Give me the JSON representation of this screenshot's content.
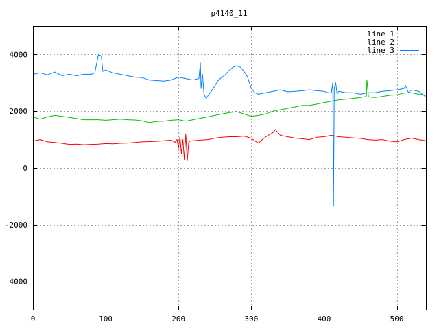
{
  "chart_data": {
    "type": "line",
    "title": "p4140_11",
    "xlabel": "",
    "ylabel": "",
    "xlim": [
      0,
      540
    ],
    "ylim": [
      -5000,
      5000
    ],
    "xticks": [
      0,
      100,
      200,
      300,
      400,
      500
    ],
    "yticks": [
      -4000,
      -2000,
      0,
      2000,
      4000
    ],
    "grid": true,
    "legend_position": "top-right",
    "series": [
      {
        "name": "line 1",
        "color": "#ff0000",
        "points": [
          [
            0,
            950
          ],
          [
            10,
            1000
          ],
          [
            20,
            920
          ],
          [
            30,
            900
          ],
          [
            40,
            870
          ],
          [
            50,
            830
          ],
          [
            60,
            840
          ],
          [
            70,
            820
          ],
          [
            80,
            830
          ],
          [
            90,
            840
          ],
          [
            100,
            860
          ],
          [
            110,
            850
          ],
          [
            120,
            870
          ],
          [
            130,
            880
          ],
          [
            140,
            900
          ],
          [
            150,
            920
          ],
          [
            160,
            930
          ],
          [
            170,
            940
          ],
          [
            180,
            960
          ],
          [
            190,
            980
          ],
          [
            195,
            900
          ],
          [
            198,
            1000
          ],
          [
            200,
            700
          ],
          [
            202,
            1100
          ],
          [
            204,
            500
          ],
          [
            206,
            1000
          ],
          [
            208,
            300
          ],
          [
            210,
            1200
          ],
          [
            212,
            250
          ],
          [
            214,
            900
          ],
          [
            216,
            950
          ],
          [
            220,
            960
          ],
          [
            230,
            980
          ],
          [
            240,
            1000
          ],
          [
            250,
            1050
          ],
          [
            260,
            1080
          ],
          [
            270,
            1100
          ],
          [
            280,
            1100
          ],
          [
            290,
            1120
          ],
          [
            300,
            1050
          ],
          [
            305,
            950
          ],
          [
            310,
            880
          ],
          [
            315,
            1000
          ],
          [
            320,
            1100
          ],
          [
            330,
            1250
          ],
          [
            333,
            1350
          ],
          [
            340,
            1150
          ],
          [
            350,
            1100
          ],
          [
            360,
            1050
          ],
          [
            370,
            1030
          ],
          [
            380,
            1000
          ],
          [
            390,
            1080
          ],
          [
            400,
            1100
          ],
          [
            410,
            1150
          ],
          [
            420,
            1100
          ],
          [
            430,
            1080
          ],
          [
            440,
            1060
          ],
          [
            450,
            1040
          ],
          [
            460,
            1000
          ],
          [
            470,
            980
          ],
          [
            480,
            1000
          ],
          [
            490,
            950
          ],
          [
            500,
            920
          ],
          [
            510,
            1000
          ],
          [
            520,
            1050
          ],
          [
            530,
            1000
          ],
          [
            540,
            960
          ]
        ]
      },
      {
        "name": "line 2",
        "color": "#00c000",
        "points": [
          [
            0,
            1800
          ],
          [
            10,
            1720
          ],
          [
            20,
            1800
          ],
          [
            30,
            1850
          ],
          [
            40,
            1820
          ],
          [
            50,
            1780
          ],
          [
            60,
            1740
          ],
          [
            70,
            1700
          ],
          [
            80,
            1700
          ],
          [
            90,
            1700
          ],
          [
            100,
            1680
          ],
          [
            110,
            1700
          ],
          [
            120,
            1720
          ],
          [
            130,
            1700
          ],
          [
            140,
            1690
          ],
          [
            150,
            1660
          ],
          [
            160,
            1600
          ],
          [
            170,
            1640
          ],
          [
            180,
            1650
          ],
          [
            190,
            1680
          ],
          [
            200,
            1700
          ],
          [
            210,
            1650
          ],
          [
            220,
            1700
          ],
          [
            230,
            1750
          ],
          [
            240,
            1800
          ],
          [
            250,
            1850
          ],
          [
            260,
            1900
          ],
          [
            270,
            1950
          ],
          [
            280,
            1980
          ],
          [
            290,
            1900
          ],
          [
            300,
            1820
          ],
          [
            310,
            1850
          ],
          [
            320,
            1900
          ],
          [
            330,
            2000
          ],
          [
            340,
            2050
          ],
          [
            350,
            2100
          ],
          [
            360,
            2150
          ],
          [
            370,
            2200
          ],
          [
            380,
            2200
          ],
          [
            390,
            2250
          ],
          [
            400,
            2300
          ],
          [
            410,
            2350
          ],
          [
            420,
            2400
          ],
          [
            430,
            2420
          ],
          [
            440,
            2450
          ],
          [
            450,
            2480
          ],
          [
            458,
            2520
          ],
          [
            459,
            3100
          ],
          [
            461,
            2500
          ],
          [
            470,
            2480
          ],
          [
            480,
            2520
          ],
          [
            490,
            2560
          ],
          [
            500,
            2580
          ],
          [
            510,
            2640
          ],
          [
            520,
            2650
          ],
          [
            530,
            2600
          ],
          [
            540,
            2560
          ]
        ]
      },
      {
        "name": "line 3",
        "color": "#0080ff",
        "points": [
          [
            0,
            3300
          ],
          [
            10,
            3350
          ],
          [
            20,
            3280
          ],
          [
            30,
            3380
          ],
          [
            40,
            3250
          ],
          [
            50,
            3300
          ],
          [
            60,
            3250
          ],
          [
            70,
            3300
          ],
          [
            80,
            3300
          ],
          [
            85,
            3350
          ],
          [
            90,
            4000
          ],
          [
            94,
            3950
          ],
          [
            96,
            3400
          ],
          [
            100,
            3450
          ],
          [
            110,
            3350
          ],
          [
            120,
            3300
          ],
          [
            130,
            3250
          ],
          [
            140,
            3200
          ],
          [
            150,
            3180
          ],
          [
            160,
            3100
          ],
          [
            170,
            3080
          ],
          [
            180,
            3060
          ],
          [
            190,
            3100
          ],
          [
            200,
            3200
          ],
          [
            210,
            3150
          ],
          [
            220,
            3100
          ],
          [
            228,
            3150
          ],
          [
            230,
            3700
          ],
          [
            231,
            2800
          ],
          [
            233,
            3300
          ],
          [
            235,
            2600
          ],
          [
            238,
            2450
          ],
          [
            242,
            2600
          ],
          [
            245,
            2700
          ],
          [
            250,
            2900
          ],
          [
            255,
            3100
          ],
          [
            260,
            3200
          ],
          [
            265,
            3300
          ],
          [
            270,
            3450
          ],
          [
            275,
            3550
          ],
          [
            280,
            3600
          ],
          [
            285,
            3550
          ],
          [
            290,
            3400
          ],
          [
            295,
            3200
          ],
          [
            300,
            2800
          ],
          [
            305,
            2650
          ],
          [
            310,
            2600
          ],
          [
            320,
            2650
          ],
          [
            330,
            2700
          ],
          [
            340,
            2750
          ],
          [
            350,
            2680
          ],
          [
            360,
            2700
          ],
          [
            370,
            2720
          ],
          [
            380,
            2750
          ],
          [
            390,
            2720
          ],
          [
            400,
            2700
          ],
          [
            405,
            2650
          ],
          [
            410,
            2650
          ],
          [
            412,
            3000
          ],
          [
            413,
            -1350
          ],
          [
            414,
            2800
          ],
          [
            416,
            3000
          ],
          [
            418,
            2600
          ],
          [
            420,
            2700
          ],
          [
            430,
            2650
          ],
          [
            440,
            2650
          ],
          [
            450,
            2600
          ],
          [
            460,
            2650
          ],
          [
            470,
            2650
          ],
          [
            480,
            2700
          ],
          [
            490,
            2720
          ],
          [
            500,
            2750
          ],
          [
            510,
            2800
          ],
          [
            512,
            2900
          ],
          [
            516,
            2650
          ],
          [
            520,
            2750
          ],
          [
            530,
            2700
          ],
          [
            540,
            2500
          ]
        ]
      }
    ]
  }
}
